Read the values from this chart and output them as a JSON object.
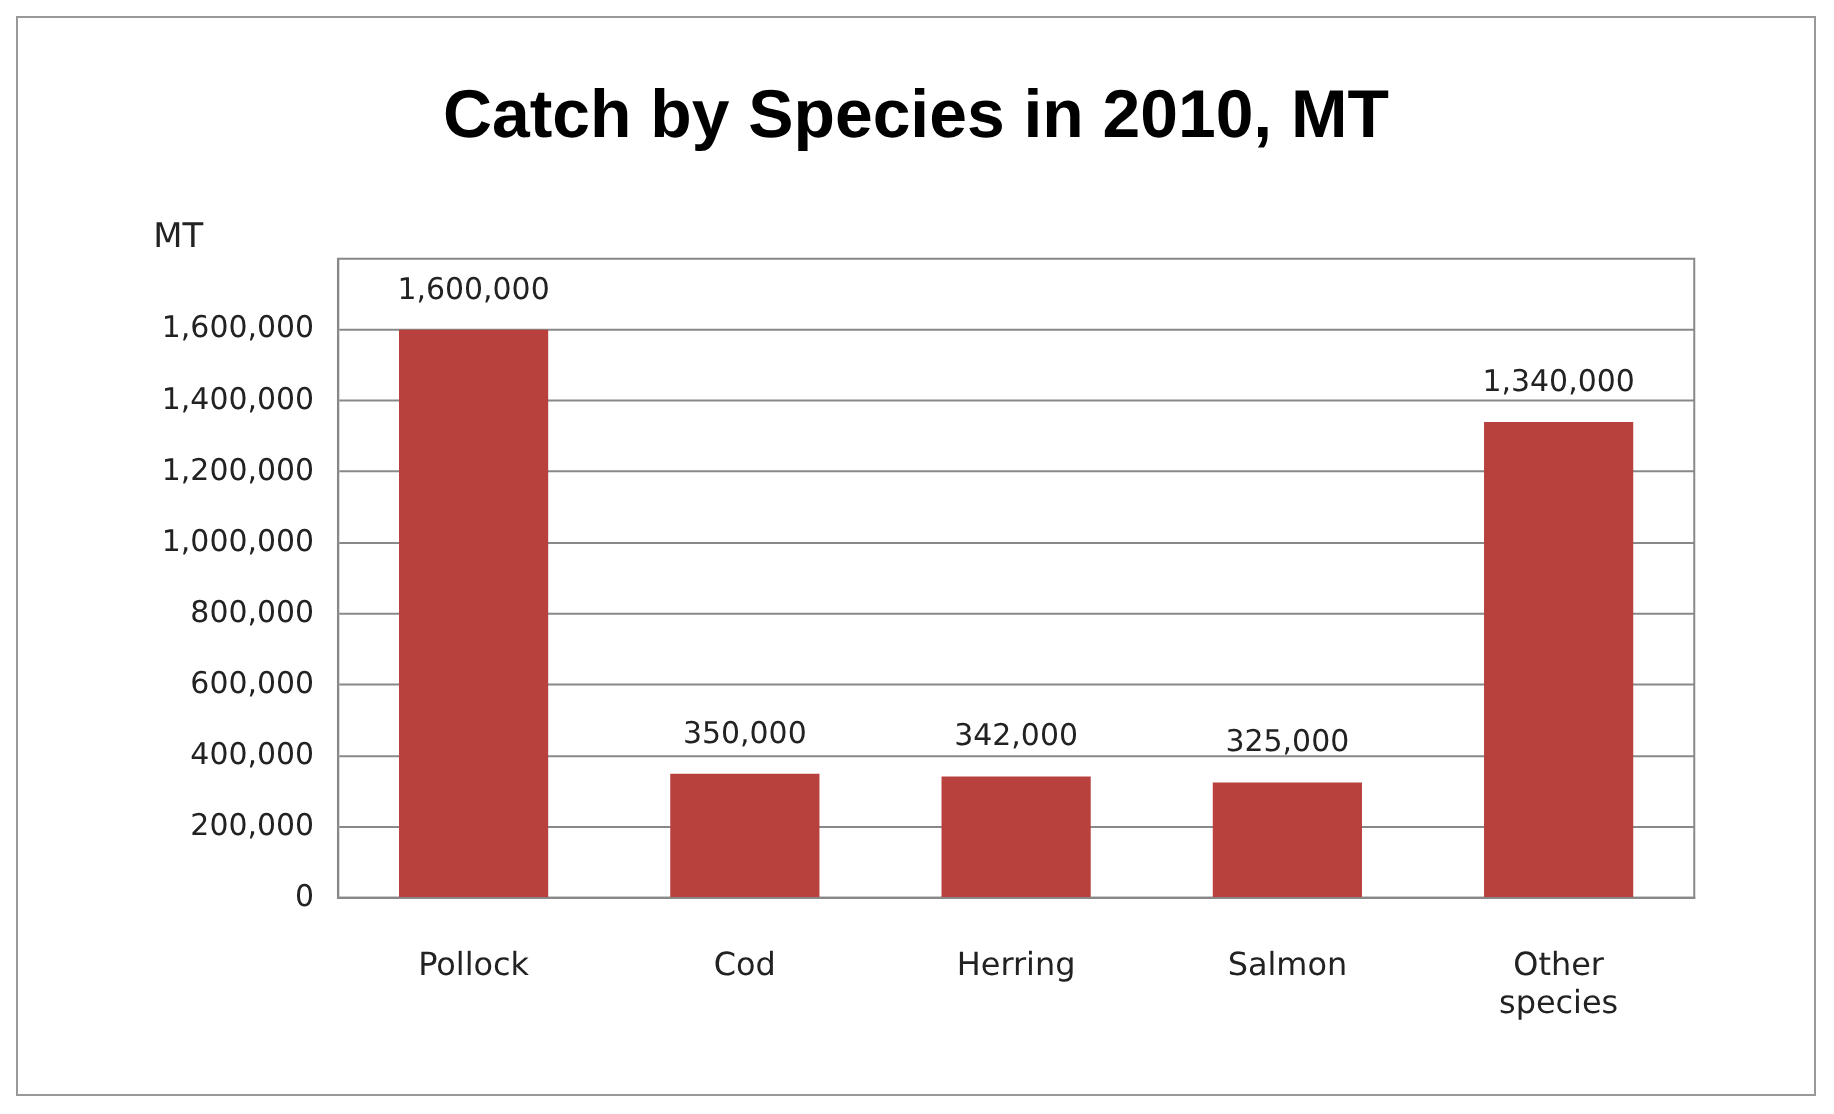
{
  "chart_data": {
    "type": "bar",
    "title": "Catch by Species in 2010, MT",
    "ylabel": "MT",
    "categories": [
      "Pollock",
      "Cod",
      "Herring",
      "Salmon",
      "Other species"
    ],
    "values": [
      1600000,
      350000,
      342000,
      325000,
      1340000
    ],
    "value_labels": [
      "1,600,000",
      "350,000",
      "342,000",
      "325,000",
      "1,340,000"
    ],
    "color": "#b8403d",
    "ylim": [
      0,
      1800000
    ],
    "yticks": [
      0,
      {
        "value": 200000,
        "label": "200,000"
      },
      {
        "value": 400000,
        "label": "400,000"
      },
      {
        "value": 600000,
        "label": "600,000"
      },
      {
        "value": 800000,
        "label": "800,000"
      },
      {
        "value": 1000000,
        "label": "1,000,000"
      },
      {
        "value": 1200000,
        "label": "1,200,000"
      },
      {
        "value": 1400000,
        "label": "1,400,000"
      },
      {
        "value": 1600000,
        "label": "1,600,000"
      }
    ],
    "grid": "y",
    "legend": false
  }
}
